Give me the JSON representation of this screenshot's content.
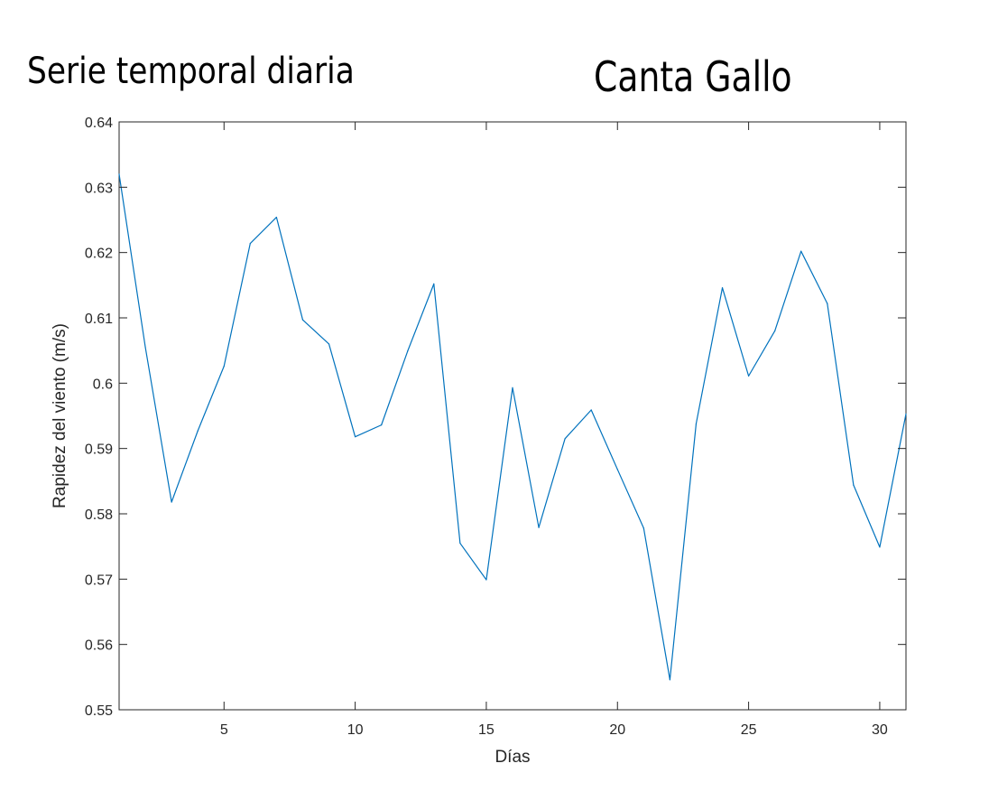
{
  "header": {
    "title_left": "Serie temporal diaria",
    "title_right": "Canta Gallo"
  },
  "chart_data": {
    "type": "line",
    "title": "",
    "xlabel": "Días",
    "ylabel": "Rapidez del viento (m/s)",
    "xlim": [
      1,
      31
    ],
    "ylim": [
      0.55,
      0.64
    ],
    "xticks": [
      5,
      10,
      15,
      20,
      25,
      30
    ],
    "yticks": [
      0.55,
      0.56,
      0.57,
      0.58,
      0.59,
      0.6,
      0.61,
      0.62,
      0.63,
      0.64
    ],
    "ytick_labels": [
      "0.55",
      "0.56",
      "0.57",
      "0.58",
      "0.59",
      "0.6",
      "0.61",
      "0.62",
      "0.63",
      "0.64"
    ],
    "grid": false,
    "line_color": "#0072BD",
    "series": [
      {
        "x": [
          1,
          2,
          3,
          4,
          5,
          6,
          7,
          8,
          9,
          10,
          11,
          12,
          13,
          14,
          15,
          16,
          17,
          18,
          19,
          20,
          21,
          22,
          23,
          24,
          25,
          26,
          27,
          28,
          29,
          30,
          31
        ],
        "values": [
          0.632,
          0.6055,
          0.5818,
          0.5927,
          0.6026,
          0.6214,
          0.6254,
          0.6097,
          0.606,
          0.5918,
          0.5936,
          0.6049,
          0.6152,
          0.5755,
          0.5699,
          0.5993,
          0.5779,
          0.5915,
          0.5959,
          0.5868,
          0.5778,
          0.5546,
          0.5938,
          0.6146,
          0.6011,
          0.608,
          0.6202,
          0.6122,
          0.5844,
          0.5749,
          0.5953
        ]
      }
    ]
  }
}
